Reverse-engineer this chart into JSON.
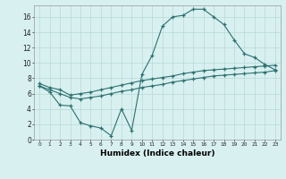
{
  "line1_x": [
    0,
    1,
    2,
    3,
    4,
    5,
    6,
    7,
    8,
    9,
    10,
    11,
    12,
    13,
    14,
    15,
    16,
    17,
    18,
    19,
    20,
    21,
    22,
    23
  ],
  "line1_y": [
    7.0,
    6.2,
    4.5,
    4.4,
    2.2,
    1.8,
    1.5,
    0.5,
    4.0,
    1.2,
    8.5,
    11.0,
    14.8,
    16.0,
    16.2,
    17.0,
    17.0,
    16.0,
    15.0,
    13.0,
    11.2,
    10.7,
    9.8,
    9.1
  ],
  "line2_x": [
    0,
    1,
    2,
    3,
    4,
    5,
    6,
    7,
    8,
    9,
    10,
    11,
    12,
    13,
    14,
    15,
    16,
    17,
    18,
    19,
    20,
    21,
    22,
    23
  ],
  "line2_y": [
    7.0,
    6.5,
    6.0,
    5.5,
    5.3,
    5.5,
    5.7,
    6.0,
    6.3,
    6.5,
    6.8,
    7.0,
    7.2,
    7.5,
    7.7,
    7.9,
    8.1,
    8.3,
    8.4,
    8.5,
    8.6,
    8.7,
    8.8,
    9.0
  ],
  "line3_x": [
    0,
    1,
    2,
    3,
    4,
    5,
    6,
    7,
    8,
    9,
    10,
    11,
    12,
    13,
    14,
    15,
    16,
    17,
    18,
    19,
    20,
    21,
    22,
    23
  ],
  "line3_y": [
    7.3,
    6.8,
    6.5,
    5.8,
    6.0,
    6.2,
    6.5,
    6.8,
    7.1,
    7.4,
    7.7,
    7.9,
    8.1,
    8.3,
    8.6,
    8.8,
    9.0,
    9.1,
    9.2,
    9.3,
    9.4,
    9.5,
    9.6,
    9.7
  ],
  "line_color": "#2d7070",
  "bg_color": "#d8f0f0",
  "grid_color": "#b8d8d8",
  "xlabel": "Humidex (Indice chaleur)",
  "xlim": [
    -0.5,
    23.5
  ],
  "ylim": [
    0,
    17.5
  ],
  "yticks": [
    0,
    2,
    4,
    6,
    8,
    10,
    12,
    14,
    16
  ],
  "xticks": [
    0,
    1,
    2,
    3,
    4,
    5,
    6,
    7,
    8,
    9,
    10,
    11,
    12,
    13,
    14,
    15,
    16,
    17,
    18,
    19,
    20,
    21,
    22,
    23
  ]
}
